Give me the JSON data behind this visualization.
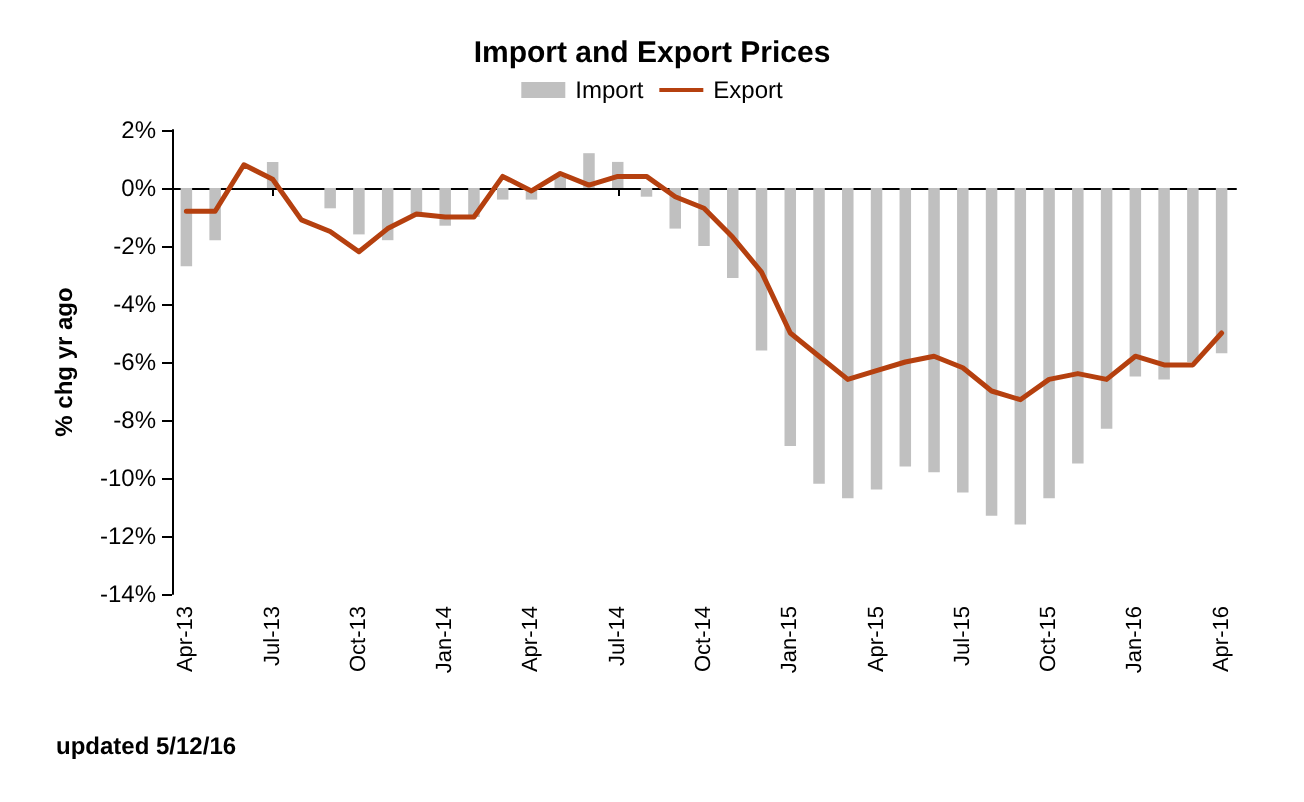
{
  "chart_data": {
    "type": "bar",
    "title": "Import and Export Prices",
    "ylabel": "% chg yr ago",
    "categories": [
      "Apr-13",
      null,
      null,
      "Jul-13",
      null,
      null,
      "Oct-13",
      null,
      null,
      "Jan-14",
      null,
      null,
      "Apr-14",
      null,
      null,
      "Jul-14",
      null,
      null,
      "Oct-14",
      null,
      null,
      "Jan-15",
      null,
      null,
      "Apr-15",
      null,
      null,
      "Jul-15",
      null,
      null,
      "Oct-15",
      null,
      null,
      "Jan-16",
      null,
      null,
      "Apr-16"
    ],
    "series": [
      {
        "name": "Import",
        "color": "#c0c0c0",
        "values": [
          -2.7,
          -1.8,
          0,
          0.9,
          0,
          -0.7,
          -1.6,
          -1.8,
          -1.0,
          -1.3,
          -1.0,
          -0.4,
          -0.4,
          0.4,
          1.2,
          0.9,
          -0.3,
          -1.4,
          -2.0,
          -3.1,
          -5.6,
          -8.9,
          -10.2,
          -10.7,
          -10.4,
          -9.6,
          -9.8,
          -10.5,
          -11.3,
          -11.6,
          -10.7,
          -9.5,
          -8.3,
          -6.5,
          -6.6,
          -6.0,
          -5.7
        ]
      },
      {
        "name": "Export",
        "type": "line",
        "color": "#b5400f",
        "values": [
          -0.8,
          -0.8,
          0.8,
          0.3,
          -1.1,
          -1.5,
          -2.2,
          -1.4,
          -0.9,
          -1.0,
          -1.0,
          0.4,
          -0.1,
          0.5,
          0.1,
          0.4,
          0.4,
          -0.3,
          -0.7,
          -1.7,
          -2.9,
          -5.0,
          -5.8,
          -6.6,
          -6.3,
          -6.0,
          -5.8,
          -6.2,
          -7.0,
          -7.3,
          -6.6,
          -6.4,
          -6.6,
          -5.8,
          -6.1,
          -6.1,
          -5.0
        ]
      }
    ],
    "ylim": [
      -14,
      2
    ],
    "yticks": [
      {
        "value": -14,
        "label": "-14%"
      },
      {
        "value": -12,
        "label": "-12%"
      },
      {
        "value": -10,
        "label": "-10%"
      },
      {
        "value": -8,
        "label": "-8%"
      },
      {
        "value": -6,
        "label": "-6%"
      },
      {
        "value": -4,
        "label": "-4%"
      },
      {
        "value": -2,
        "label": "-2%"
      },
      {
        "value": 0,
        "label": "0%"
      },
      {
        "value": 2,
        "label": "2%"
      }
    ],
    "legend": "top",
    "marker": "none",
    "line_style": "solid",
    "annotations": [
      "updated 5/12/16"
    ]
  }
}
